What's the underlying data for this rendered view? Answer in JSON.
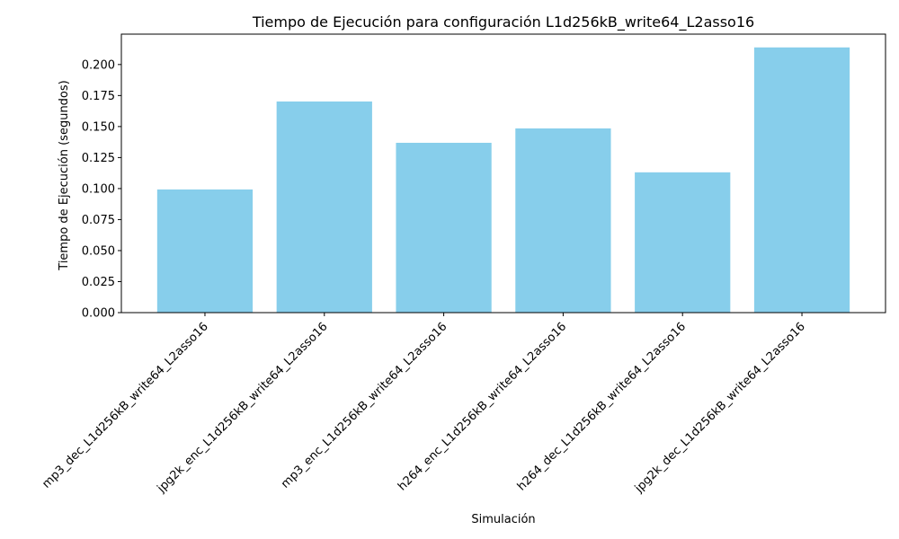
{
  "chart_data": {
    "type": "bar",
    "title": "Tiempo de Ejecución para configuración L1d256kB_write64_L2asso16",
    "xlabel": "Simulación",
    "ylabel": "Tiempo de Ejecución (segundos)",
    "categories": [
      "mp3_dec_L1d256kB_write64_L2asso16",
      "jpg2k_enc_L1d256kB_write64_L2asso16",
      "mp3_enc_L1d256kB_write64_L2asso16",
      "h264_enc_L1d256kB_write64_L2asso16",
      "h264_dec_L1d256kB_write64_L2asso16",
      "jpg2k_dec_L1d256kB_write64_L2asso16"
    ],
    "values": [
      0.0993,
      0.1702,
      0.1369,
      0.1485,
      0.1131,
      0.2138
    ],
    "ylim": [
      0,
      0.2245
    ],
    "yticks": [
      "0.000",
      "0.025",
      "0.050",
      "0.075",
      "0.100",
      "0.125",
      "0.150",
      "0.175",
      "0.200"
    ],
    "bar_color": "#87CEEB",
    "grid": false,
    "legend": "none"
  }
}
